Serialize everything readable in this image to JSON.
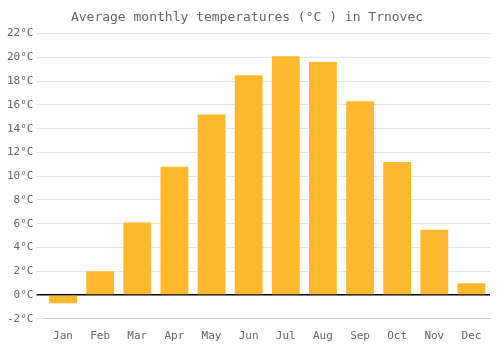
{
  "chart_data": {
    "type": "bar",
    "title": "Average monthly temperatures (°C ) in Trnovec",
    "categories": [
      "Jan",
      "Feb",
      "Mar",
      "Apr",
      "May",
      "Jun",
      "Jul",
      "Aug",
      "Sep",
      "Oct",
      "Nov",
      "Dec"
    ],
    "values": [
      -0.7,
      2.0,
      6.1,
      10.8,
      15.2,
      18.5,
      20.1,
      19.6,
      16.3,
      11.2,
      5.5,
      1.0
    ],
    "color": "#FDB92E",
    "ylim": [
      -2,
      22
    ],
    "yticks": [
      {
        "value": -2,
        "label": "-2°C"
      },
      {
        "value": 0,
        "label": "0°C"
      },
      {
        "value": 2,
        "label": "2°C"
      },
      {
        "value": 4,
        "label": "4°C"
      },
      {
        "value": 6,
        "label": "6°C"
      },
      {
        "value": 8,
        "label": "8°C"
      },
      {
        "value": 10,
        "label": "10°C"
      },
      {
        "value": 12,
        "label": "12°C"
      },
      {
        "value": 14,
        "label": "14°C"
      },
      {
        "value": 16,
        "label": "16°C"
      },
      {
        "value": 18,
        "label": "18°C"
      },
      {
        "value": 20,
        "label": "20°C"
      },
      {
        "value": 22,
        "label": "22°C"
      }
    ],
    "grid": true
  }
}
